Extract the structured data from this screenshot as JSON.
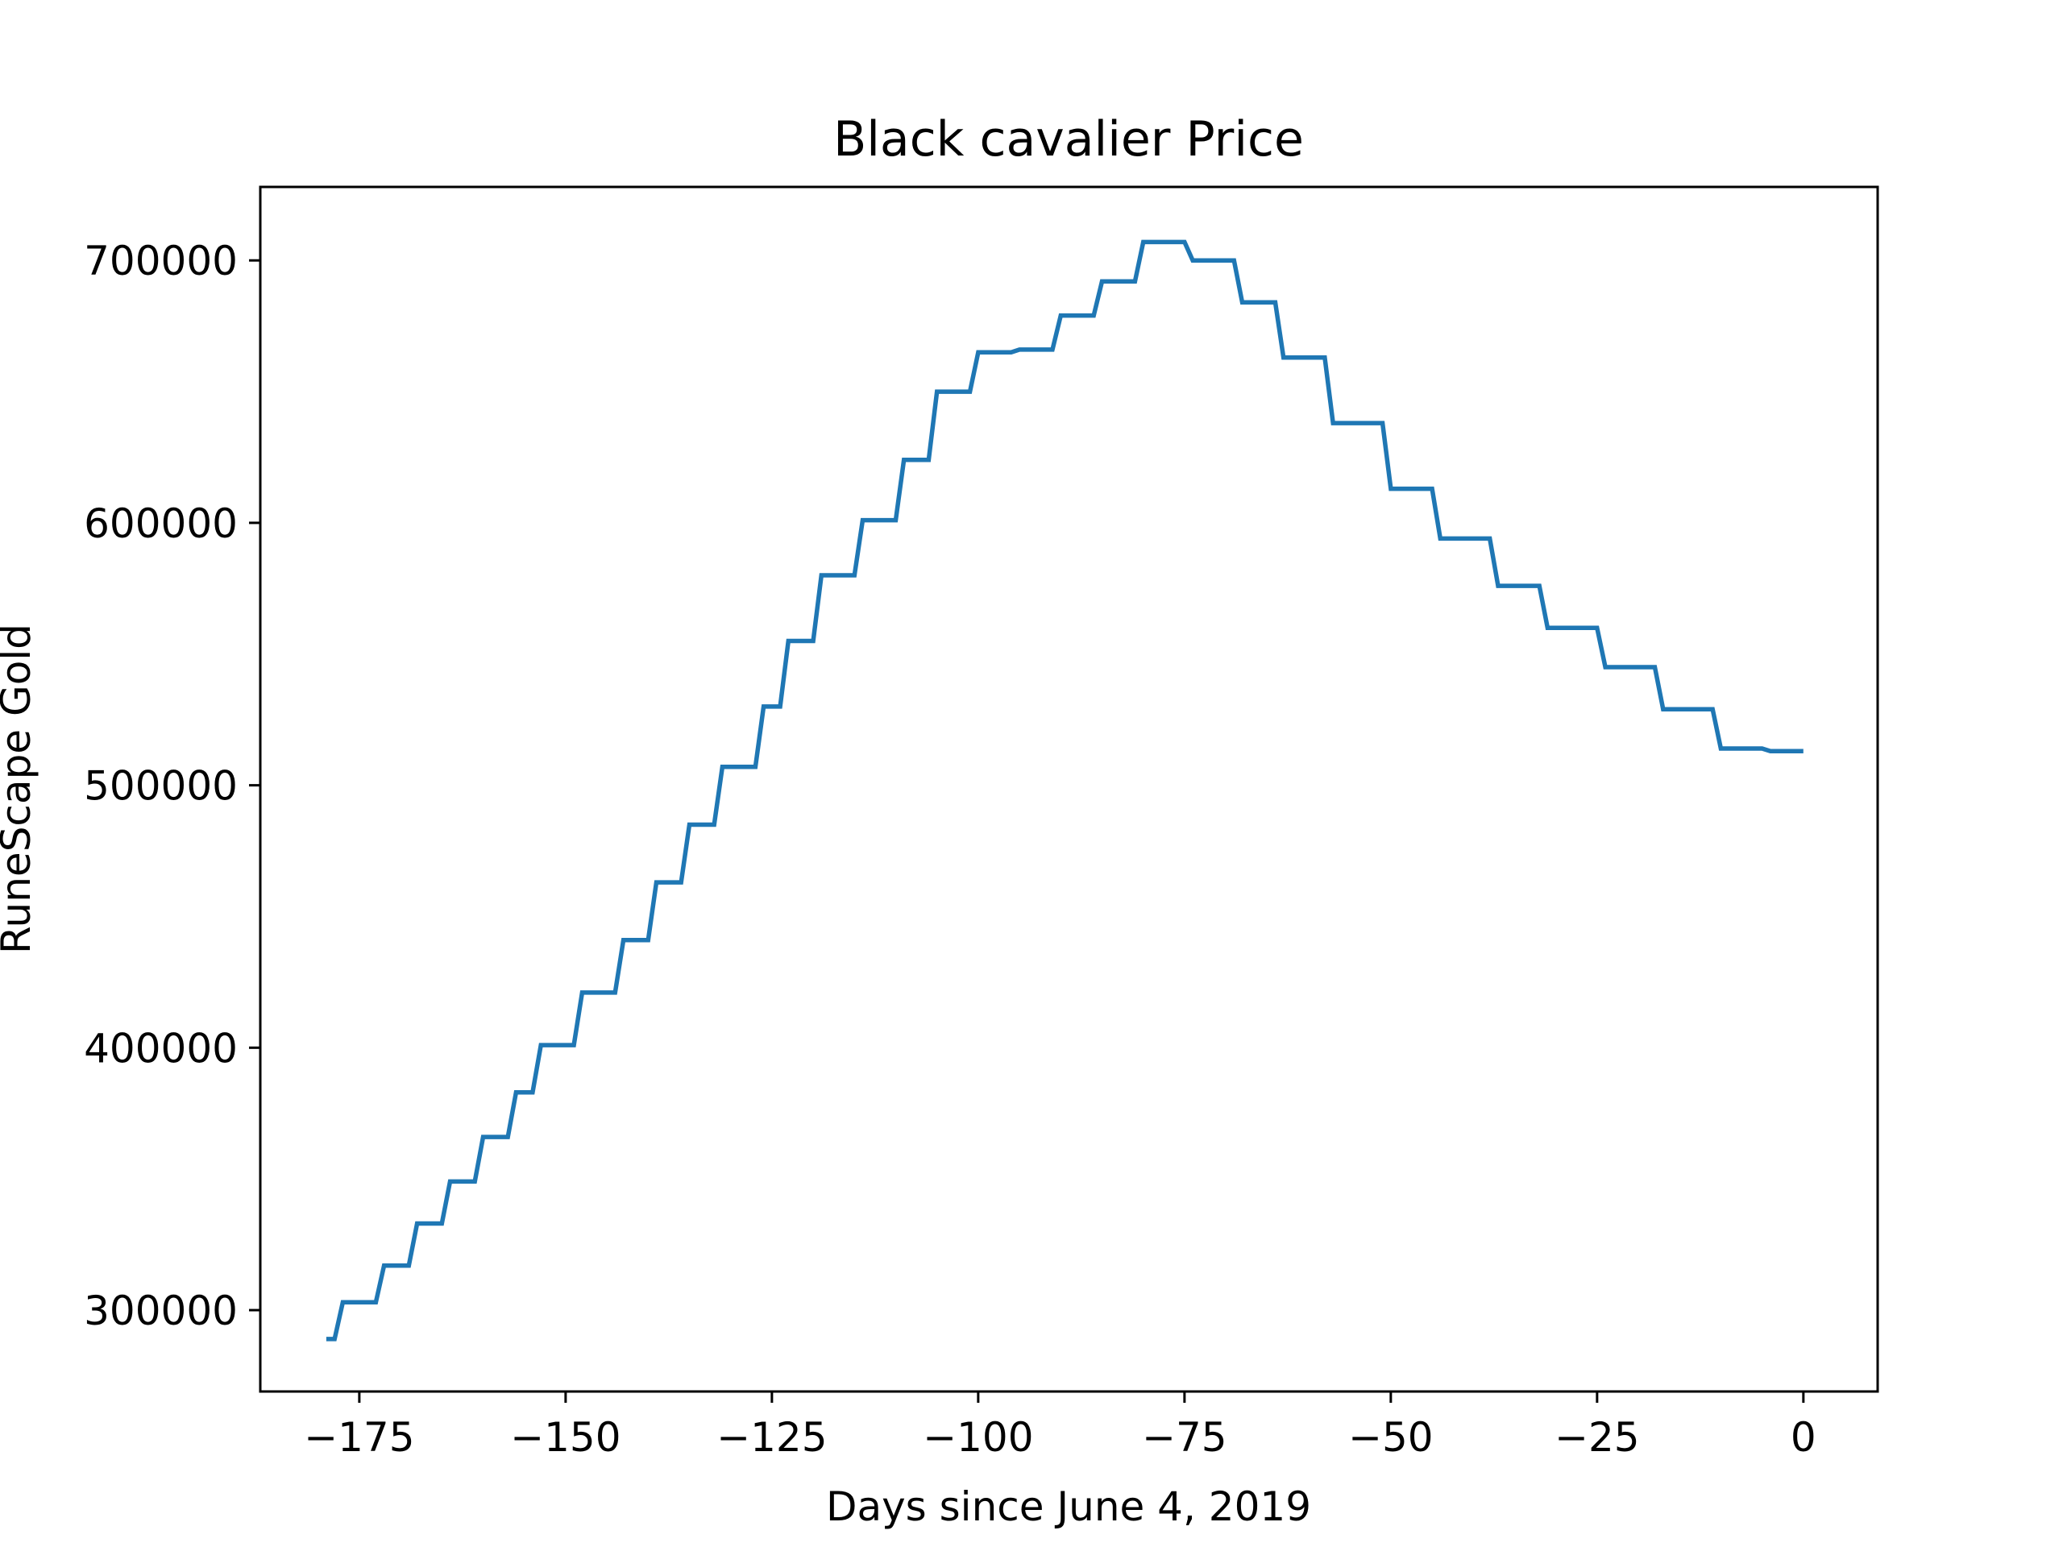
{
  "chart_data": {
    "type": "line",
    "title": "Black cavalier Price",
    "xlabel": "Days since June 4, 2019",
    "ylabel": "RuneScape Gold",
    "xlim": [
      -187,
      9
    ],
    "ylim": [
      269000,
      728000
    ],
    "x_ticks": [
      -175,
      -150,
      -125,
      -100,
      -75,
      -50,
      -25,
      0
    ],
    "x_tick_labels": [
      "−175",
      "−150",
      "−125",
      "−100",
      "−75",
      "−50",
      "−25",
      "0"
    ],
    "y_ticks": [
      300000,
      400000,
      500000,
      600000,
      700000
    ],
    "y_tick_labels": [
      "300000",
      "400000",
      "500000",
      "600000",
      "700000"
    ],
    "grid": false,
    "legend": false,
    "series": [
      {
        "color": "#1f77b4",
        "x": [
          -179,
          -178,
          -177,
          -173,
          -172,
          -169,
          -168,
          -165,
          -164,
          -161,
          -160,
          -157,
          -156,
          -154,
          -153,
          -149,
          -148,
          -144,
          -143,
          -140,
          -139,
          -136,
          -135,
          -132,
          -131,
          -127,
          -126,
          -124,
          -123,
          -120,
          -119,
          -115,
          -114,
          -110,
          -109,
          -106,
          -105,
          -101,
          -100,
          -96,
          -95,
          -91,
          -90,
          -86,
          -85,
          -81,
          -80,
          -75,
          -74,
          -69,
          -68,
          -64,
          -63,
          -58,
          -57,
          -51,
          -50,
          -45,
          -44,
          -38,
          -37,
          -32,
          -31,
          -25,
          -24,
          -18,
          -17,
          -11,
          -10,
          -6,
          -5,
          -4,
          -3,
          0
        ],
        "y": [
          289000,
          289000,
          303000,
          303000,
          317000,
          317000,
          333000,
          333000,
          349000,
          349000,
          366000,
          366000,
          383000,
          383000,
          401000,
          401000,
          421000,
          421000,
          441000,
          441000,
          463000,
          463000,
          485000,
          485000,
          507000,
          507000,
          530000,
          530000,
          555000,
          555000,
          580000,
          580000,
          601000,
          601000,
          624000,
          624000,
          650000,
          650000,
          665000,
          665000,
          666000,
          666000,
          679000,
          679000,
          692000,
          692000,
          707000,
          707000,
          700000,
          700000,
          684000,
          684000,
          663000,
          663000,
          638000,
          638000,
          613000,
          613000,
          594000,
          594000,
          576000,
          576000,
          560000,
          560000,
          545000,
          545000,
          529000,
          529000,
          514000,
          514000,
          514000,
          513000,
          513000,
          513000
        ]
      }
    ]
  }
}
